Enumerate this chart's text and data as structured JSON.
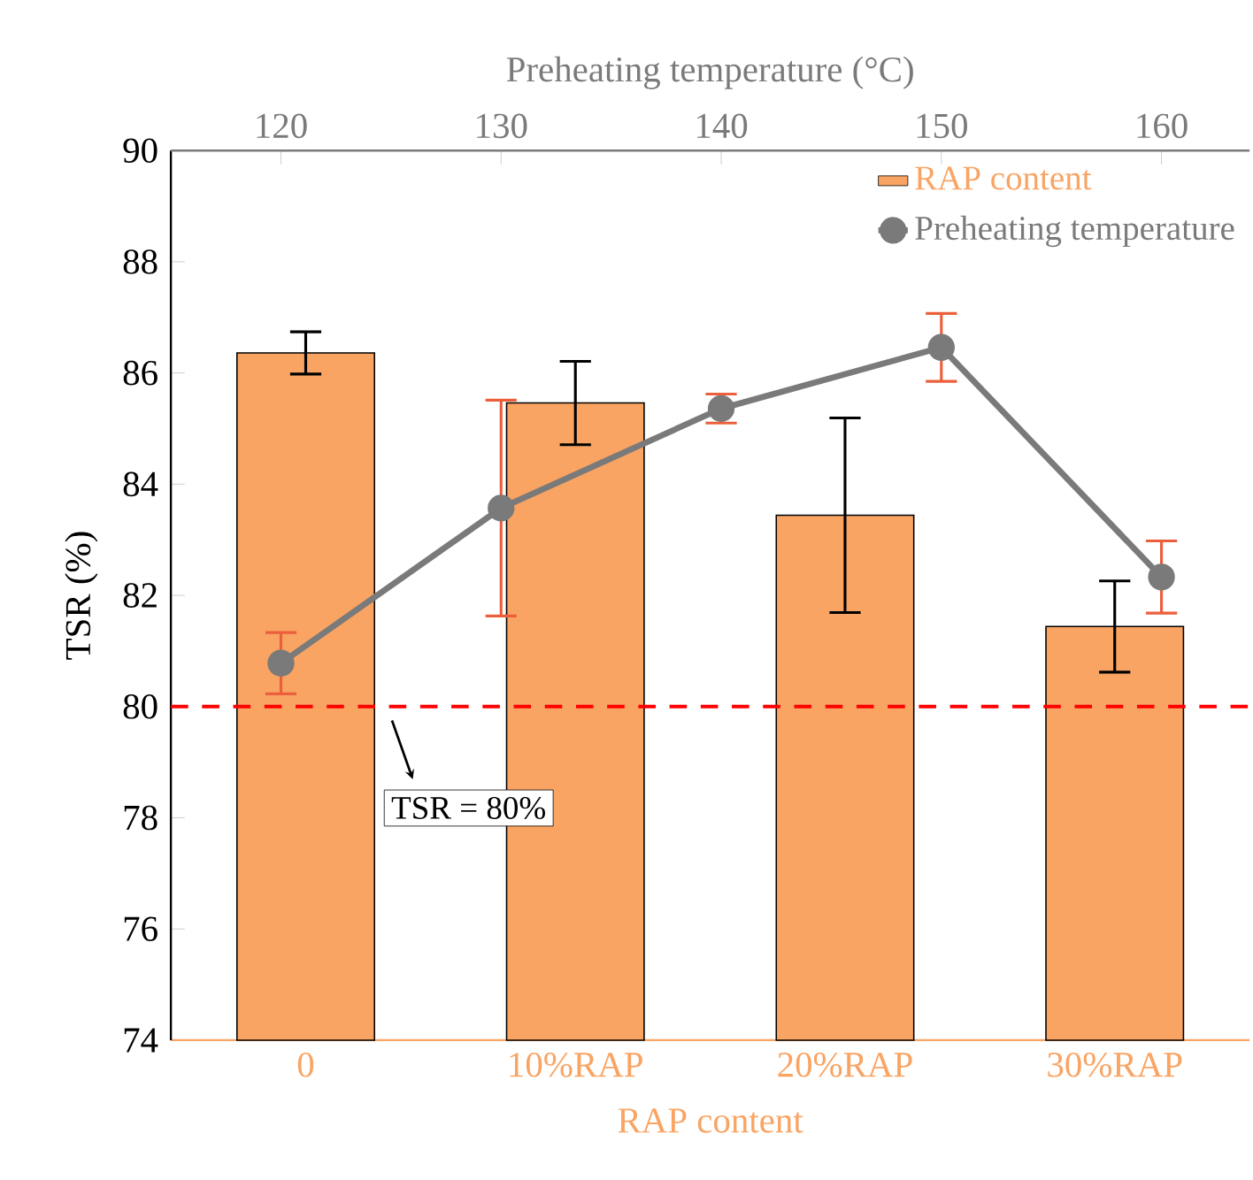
{
  "chart_data": {
    "type": "bar",
    "xlabel": "RAP content",
    "ylabel": "TSR (%)",
    "x2label": "Preheating temperature (°C)",
    "categories": [
      "0",
      "10%RAP",
      "20%RAP",
      "30%RAP"
    ],
    "ylim": [
      74,
      90
    ],
    "yticks": [
      74,
      76,
      78,
      80,
      82,
      84,
      86,
      88,
      90
    ],
    "x2lim": [
      115,
      164
    ],
    "x2ticks": [
      120,
      130,
      140,
      150,
      160
    ],
    "series": [
      {
        "name": "RAP content",
        "color": "#f9a463",
        "values": [
          86.36,
          85.46,
          83.44,
          81.44
        ],
        "errors": [
          0.38,
          0.75,
          1.75,
          0.82
        ]
      },
      {
        "name": "Preheating temperature",
        "type": "line",
        "axis": "x2",
        "color": "#7a7a7a",
        "x": [
          120,
          130,
          140,
          150,
          160
        ],
        "values": [
          80.78,
          83.57,
          85.36,
          86.46,
          82.33
        ],
        "errors": [
          0.55,
          1.94,
          0.26,
          0.61,
          0.65
        ],
        "marker": "circle",
        "line_style": "solid"
      }
    ],
    "ref_lines": [
      {
        "axis": "y",
        "value": 80,
        "label": "TSR = 80%",
        "color": "#ff0000",
        "line_style": "dashed"
      }
    ],
    "legend": "top right",
    "grid": false
  }
}
